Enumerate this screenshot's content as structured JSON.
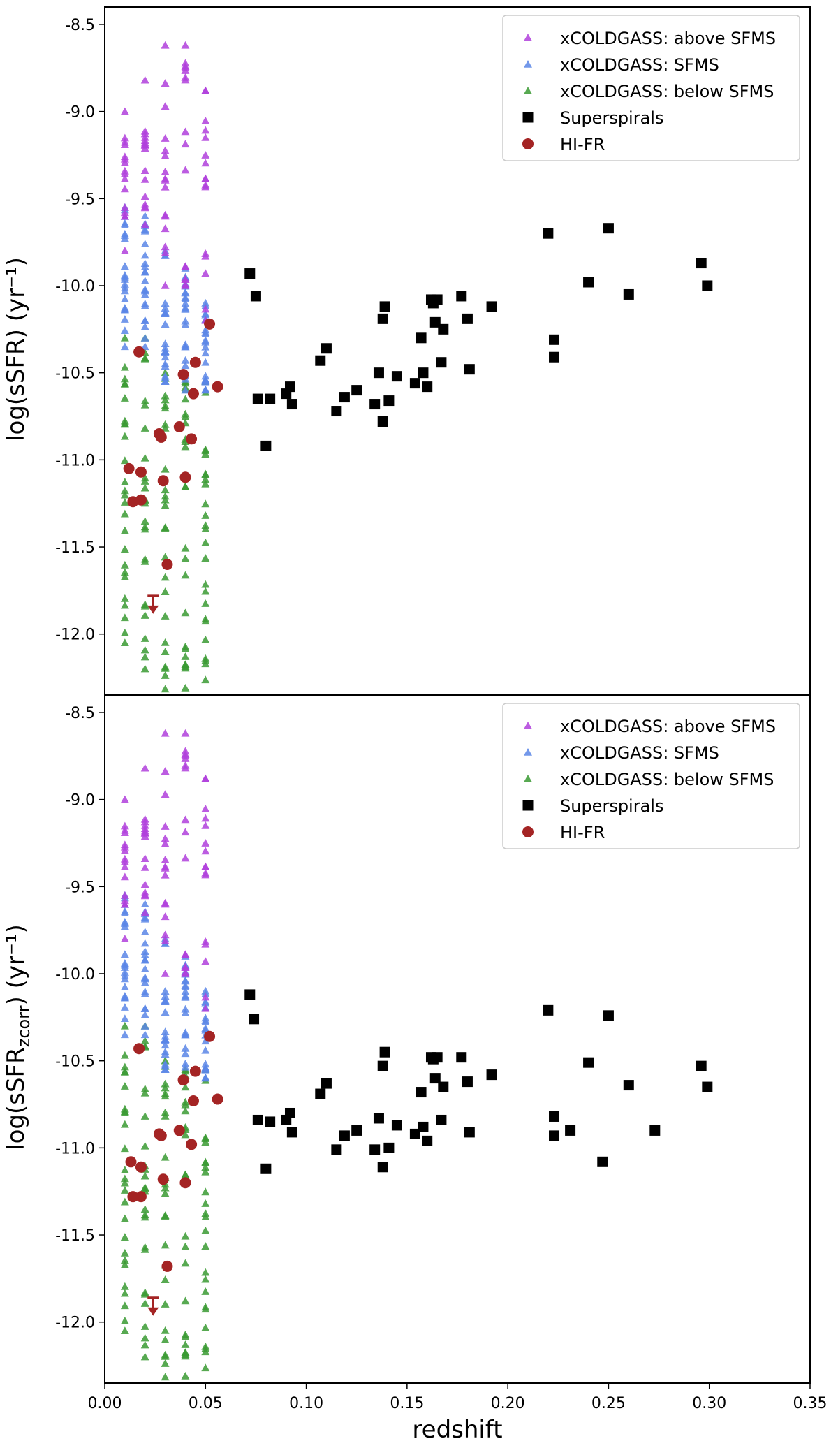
{
  "colors": {
    "above": "#b03fdc",
    "sfms": "#5a86e6",
    "below": "#3a9a32",
    "superspirals": "#000000",
    "hifr": "#a42424"
  },
  "chart_data": [
    {
      "type": "scatter",
      "panel": "top",
      "xlabel": "redshift",
      "ylabel": "log(sSFR) (yr⁻¹)",
      "xlim": [
        0.0,
        0.35
      ],
      "ylim": [
        -12.35,
        -8.4
      ],
      "yticks": [
        "-8.5",
        "-9.0",
        "-9.5",
        "-10.0",
        "-10.5",
        "-11.0",
        "-11.5",
        "-12.0"
      ],
      "ytick_values": [
        -8.5,
        -9.0,
        -9.5,
        -10.0,
        -10.5,
        -11.0,
        -11.5,
        -12.0
      ],
      "legend": {
        "location": "top-right",
        "entries": [
          "xCOLDGASS: above SFMS",
          "xCOLDGASS: SFMS",
          "xCOLDGASS: below SFMS",
          "Superspirals",
          "HI-FR"
        ]
      },
      "xcoldgass_columns": [
        {
          "x": 0.01,
          "above": [
            -9.0,
            -9.8
          ],
          "sfms": [
            -9.55,
            -10.35
          ],
          "below": [
            -10.3,
            -12.05
          ]
        },
        {
          "x": 0.02,
          "above": [
            -8.82,
            -9.65
          ],
          "sfms": [
            -9.6,
            -10.35
          ],
          "below": [
            -10.3,
            -12.2
          ]
        },
        {
          "x": 0.03,
          "above": [
            -8.62,
            -10.0
          ],
          "sfms": [
            -9.8,
            -10.55
          ],
          "below": [
            -10.5,
            -12.35
          ]
        },
        {
          "x": 0.04,
          "above": [
            -8.62,
            -10.0
          ],
          "sfms": [
            -9.9,
            -10.6
          ],
          "below": [
            -10.55,
            -12.35
          ]
        },
        {
          "x": 0.05,
          "above": [
            -8.88,
            -10.2
          ],
          "sfms": [
            -10.1,
            -10.6
          ],
          "below": [
            -10.55,
            -12.35
          ]
        }
      ],
      "superspirals": [
        [
          0.072,
          -9.93
        ],
        [
          0.075,
          -10.06
        ],
        [
          0.076,
          -10.65
        ],
        [
          0.08,
          -10.92
        ],
        [
          0.082,
          -10.65
        ],
        [
          0.09,
          -10.62
        ],
        [
          0.092,
          -10.58
        ],
        [
          0.093,
          -10.68
        ],
        [
          0.107,
          -10.43
        ],
        [
          0.11,
          -10.36
        ],
        [
          0.115,
          -10.72
        ],
        [
          0.119,
          -10.64
        ],
        [
          0.125,
          -10.6
        ],
        [
          0.134,
          -10.68
        ],
        [
          0.136,
          -10.5
        ],
        [
          0.138,
          -10.78
        ],
        [
          0.138,
          -10.19
        ],
        [
          0.139,
          -10.12
        ],
        [
          0.141,
          -10.66
        ],
        [
          0.145,
          -10.52
        ],
        [
          0.154,
          -10.56
        ],
        [
          0.157,
          -10.3
        ],
        [
          0.158,
          -10.5
        ],
        [
          0.16,
          -10.58
        ],
        [
          0.162,
          -10.08
        ],
        [
          0.163,
          -10.1
        ],
        [
          0.164,
          -10.21
        ],
        [
          0.165,
          -10.08
        ],
        [
          0.167,
          -10.44
        ],
        [
          0.168,
          -10.25
        ],
        [
          0.177,
          -10.06
        ],
        [
          0.18,
          -10.19
        ],
        [
          0.181,
          -10.48
        ],
        [
          0.192,
          -10.12
        ],
        [
          0.22,
          -9.7
        ],
        [
          0.223,
          -10.31
        ],
        [
          0.223,
          -10.41
        ],
        [
          0.24,
          -9.98
        ],
        [
          0.25,
          -9.67
        ],
        [
          0.26,
          -10.05
        ],
        [
          0.296,
          -9.87
        ],
        [
          0.299,
          -10.0
        ]
      ],
      "hifr": [
        [
          0.017,
          -10.38
        ],
        [
          0.012,
          -11.05
        ],
        [
          0.018,
          -11.07
        ],
        [
          0.014,
          -11.24
        ],
        [
          0.018,
          -11.23
        ],
        [
          0.027,
          -10.85
        ],
        [
          0.028,
          -10.87
        ],
        [
          0.029,
          -11.12
        ],
        [
          0.031,
          -11.6
        ],
        [
          0.037,
          -10.81
        ],
        [
          0.039,
          -10.51
        ],
        [
          0.04,
          -11.1
        ],
        [
          0.043,
          -10.88
        ],
        [
          0.044,
          -10.62
        ],
        [
          0.045,
          -10.44
        ],
        [
          0.052,
          -10.22
        ],
        [
          0.056,
          -10.58
        ]
      ],
      "hifr_upper_limit": [
        0.024,
        -11.78
      ]
    },
    {
      "type": "scatter",
      "panel": "bottom",
      "xlabel": "redshift",
      "ylabel": "log(sSFRzcorr) (yr⁻¹)",
      "ylabel_sub": "zcorr",
      "xlim": [
        0.0,
        0.35
      ],
      "ylim": [
        -12.35,
        -8.4
      ],
      "xticks": [
        "0.00",
        "0.05",
        "0.10",
        "0.15",
        "0.20",
        "0.25",
        "0.30",
        "0.35"
      ],
      "xtick_values": [
        0.0,
        0.05,
        0.1,
        0.15,
        0.2,
        0.25,
        0.3,
        0.35
      ],
      "yticks": [
        "-8.5",
        "-9.0",
        "-9.5",
        "-10.0",
        "-10.5",
        "-11.0",
        "-11.5",
        "-12.0"
      ],
      "ytick_values": [
        -8.5,
        -9.0,
        -9.5,
        -10.0,
        -10.5,
        -11.0,
        -11.5,
        -12.0
      ],
      "legend": {
        "location": "top-right",
        "entries": [
          "xCOLDGASS: above SFMS",
          "xCOLDGASS: SFMS",
          "xCOLDGASS: below SFMS",
          "Superspirals",
          "HI-FR"
        ]
      },
      "xcoldgass_columns": [
        {
          "x": 0.01,
          "above": [
            -9.0,
            -9.8
          ],
          "sfms": [
            -9.55,
            -10.35
          ],
          "below": [
            -10.3,
            -12.05
          ]
        },
        {
          "x": 0.02,
          "above": [
            -8.82,
            -9.65
          ],
          "sfms": [
            -9.6,
            -10.35
          ],
          "below": [
            -10.3,
            -12.2
          ]
        },
        {
          "x": 0.03,
          "above": [
            -8.62,
            -10.0
          ],
          "sfms": [
            -9.8,
            -10.55
          ],
          "below": [
            -10.5,
            -12.35
          ]
        },
        {
          "x": 0.04,
          "above": [
            -8.62,
            -10.0
          ],
          "sfms": [
            -9.9,
            -10.6
          ],
          "below": [
            -10.55,
            -12.35
          ]
        },
        {
          "x": 0.05,
          "above": [
            -8.88,
            -10.2
          ],
          "sfms": [
            -10.1,
            -10.6
          ],
          "below": [
            -10.55,
            -12.35
          ]
        }
      ],
      "superspirals": [
        [
          0.072,
          -10.12
        ],
        [
          0.074,
          -10.26
        ],
        [
          0.076,
          -10.84
        ],
        [
          0.08,
          -11.12
        ],
        [
          0.082,
          -10.85
        ],
        [
          0.09,
          -10.84
        ],
        [
          0.092,
          -10.8
        ],
        [
          0.093,
          -10.91
        ],
        [
          0.107,
          -10.69
        ],
        [
          0.11,
          -10.63
        ],
        [
          0.115,
          -11.01
        ],
        [
          0.119,
          -10.93
        ],
        [
          0.125,
          -10.9
        ],
        [
          0.134,
          -11.01
        ],
        [
          0.136,
          -10.83
        ],
        [
          0.138,
          -11.11
        ],
        [
          0.138,
          -10.53
        ],
        [
          0.139,
          -10.45
        ],
        [
          0.141,
          -11.0
        ],
        [
          0.145,
          -10.87
        ],
        [
          0.154,
          -10.92
        ],
        [
          0.157,
          -10.68
        ],
        [
          0.158,
          -10.88
        ],
        [
          0.16,
          -10.96
        ],
        [
          0.162,
          -10.48
        ],
        [
          0.163,
          -10.49
        ],
        [
          0.164,
          -10.6
        ],
        [
          0.165,
          -10.48
        ],
        [
          0.167,
          -10.84
        ],
        [
          0.168,
          -10.65
        ],
        [
          0.177,
          -10.48
        ],
        [
          0.18,
          -10.62
        ],
        [
          0.181,
          -10.91
        ],
        [
          0.192,
          -10.58
        ],
        [
          0.22,
          -10.21
        ],
        [
          0.223,
          -10.82
        ],
        [
          0.223,
          -10.93
        ],
        [
          0.231,
          -10.9
        ],
        [
          0.24,
          -10.51
        ],
        [
          0.247,
          -11.08
        ],
        [
          0.25,
          -10.24
        ],
        [
          0.26,
          -10.64
        ],
        [
          0.273,
          -10.9
        ],
        [
          0.296,
          -10.53
        ],
        [
          0.299,
          -10.65
        ]
      ],
      "hifr": [
        [
          0.017,
          -10.43
        ],
        [
          0.013,
          -11.08
        ],
        [
          0.018,
          -11.11
        ],
        [
          0.014,
          -11.28
        ],
        [
          0.018,
          -11.28
        ],
        [
          0.027,
          -10.92
        ],
        [
          0.028,
          -10.93
        ],
        [
          0.029,
          -11.18
        ],
        [
          0.031,
          -11.68
        ],
        [
          0.037,
          -10.9
        ],
        [
          0.039,
          -10.61
        ],
        [
          0.04,
          -11.2
        ],
        [
          0.043,
          -10.98
        ],
        [
          0.044,
          -10.73
        ],
        [
          0.045,
          -10.56
        ],
        [
          0.052,
          -10.36
        ],
        [
          0.056,
          -10.72
        ]
      ],
      "hifr_upper_limit": [
        0.024,
        -11.86
      ]
    }
  ]
}
